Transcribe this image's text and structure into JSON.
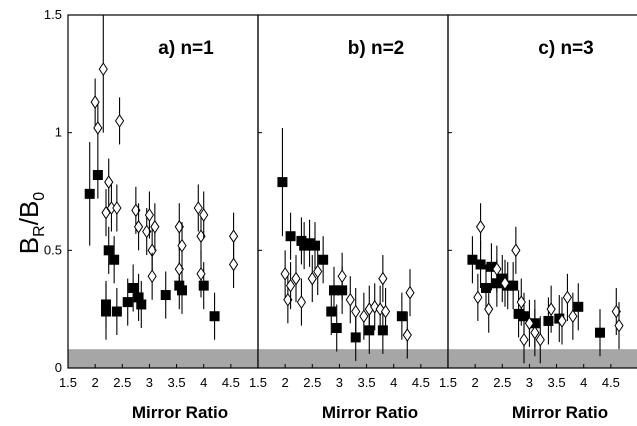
{
  "figure": {
    "ylabel_main": "B",
    "ylabel_sub_num": "R",
    "ylabel_sep": "/B",
    "ylabel_sub_den": "0",
    "ytick_labels": [
      "0",
      "0.5",
      "1",
      "1.5"
    ],
    "colors": {
      "axis": "#000000",
      "shade": "#a6a6a6",
      "filled": "#000000",
      "open": "#ffffff"
    }
  },
  "chart_data": [
    {
      "type": "scatter",
      "title": "a) n=1",
      "xlabel": "Mirror Ratio",
      "xlim": [
        1.5,
        5.0
      ],
      "ylim": [
        0,
        1.5
      ],
      "xticks": [
        "1.5",
        "2",
        "2.5",
        "3",
        "3.5",
        "4",
        "4.5"
      ],
      "shaded_band": [
        0,
        0.08
      ],
      "series": [
        {
          "marker": "filled-square",
          "points": [
            {
              "x": 1.9,
              "y": 0.74,
              "err": 0.22
            },
            {
              "x": 2.05,
              "y": 0.82,
              "err": 0.0
            },
            {
              "x": 2.2,
              "y": 0.27,
              "err": 0.1
            },
            {
              "x": 2.2,
              "y": 0.24,
              "err": 0.12
            },
            {
              "x": 2.25,
              "y": 0.5,
              "err": 0.0
            },
            {
              "x": 2.35,
              "y": 0.46,
              "err": 0.0
            },
            {
              "x": 2.4,
              "y": 0.24,
              "err": 0.0
            },
            {
              "x": 2.6,
              "y": 0.28,
              "err": 0.0
            },
            {
              "x": 2.7,
              "y": 0.34,
              "err": 0.0
            },
            {
              "x": 2.8,
              "y": 0.3,
              "err": 0.0
            },
            {
              "x": 2.85,
              "y": 0.27,
              "err": 0.0
            },
            {
              "x": 3.3,
              "y": 0.31,
              "err": 0.0
            },
            {
              "x": 3.55,
              "y": 0.35,
              "err": 0.0
            },
            {
              "x": 3.6,
              "y": 0.33,
              "err": 0.0
            },
            {
              "x": 4.0,
              "y": 0.35,
              "err": 0.0
            },
            {
              "x": 4.2,
              "y": 0.22,
              "err": 0.0
            }
          ]
        },
        {
          "marker": "open-diamond",
          "points": [
            {
              "x": 2.0,
              "y": 1.13,
              "err": 0.0
            },
            {
              "x": 2.05,
              "y": 1.02,
              "err": 0.0
            },
            {
              "x": 2.15,
              "y": 1.27,
              "err": 0.27
            },
            {
              "x": 2.25,
              "y": 0.79,
              "err": 0.0
            },
            {
              "x": 2.2,
              "y": 0.66,
              "err": 0.0
            },
            {
              "x": 2.3,
              "y": 0.68,
              "err": 0.0
            },
            {
              "x": 2.4,
              "y": 0.68,
              "err": 0.0
            },
            {
              "x": 2.45,
              "y": 1.05,
              "err": 0.0
            },
            {
              "x": 2.75,
              "y": 0.67,
              "err": 0.0
            },
            {
              "x": 2.8,
              "y": 0.6,
              "err": 0.0
            },
            {
              "x": 2.95,
              "y": 0.58,
              "err": 0.0
            },
            {
              "x": 3.0,
              "y": 0.65,
              "err": 0.0
            },
            {
              "x": 3.05,
              "y": 0.5,
              "err": 0.0
            },
            {
              "x": 3.05,
              "y": 0.39,
              "err": 0.0
            },
            {
              "x": 3.1,
              "y": 0.6,
              "err": 0.0
            },
            {
              "x": 3.55,
              "y": 0.6,
              "err": 0.0
            },
            {
              "x": 3.55,
              "y": 0.42,
              "err": 0.0
            },
            {
              "x": 3.6,
              "y": 0.52,
              "err": 0.0
            },
            {
              "x": 3.9,
              "y": 0.68,
              "err": 0.0
            },
            {
              "x": 3.95,
              "y": 0.4,
              "err": 0.0
            },
            {
              "x": 3.95,
              "y": 0.56,
              "err": 0.0
            },
            {
              "x": 4.0,
              "y": 0.65,
              "err": 0.0
            },
            {
              "x": 4.55,
              "y": 0.56,
              "err": 0.0
            },
            {
              "x": 4.55,
              "y": 0.44,
              "err": 0.0
            }
          ]
        }
      ]
    },
    {
      "type": "scatter",
      "title": "b) n=2",
      "xlabel": "Mirror Ratio",
      "xlim": [
        1.5,
        5.0
      ],
      "ylim": [
        0,
        1.5
      ],
      "xticks": [
        "1.5",
        "2",
        "2.5",
        "3",
        "3.5",
        "4",
        "4.5"
      ],
      "shaded_band": [
        0,
        0.08
      ],
      "series": [
        {
          "marker": "filled-square",
          "points": [
            {
              "x": 1.95,
              "y": 0.79,
              "err": 0.23
            },
            {
              "x": 2.1,
              "y": 0.56,
              "err": 0.0
            },
            {
              "x": 2.3,
              "y": 0.54,
              "err": 0.0
            },
            {
              "x": 2.35,
              "y": 0.52,
              "err": 0.0
            },
            {
              "x": 2.45,
              "y": 0.53,
              "err": 0.0
            },
            {
              "x": 2.55,
              "y": 0.52,
              "err": 0.0
            },
            {
              "x": 2.7,
              "y": 0.46,
              "err": 0.0
            },
            {
              "x": 2.85,
              "y": 0.24,
              "err": 0.0
            },
            {
              "x": 2.9,
              "y": 0.33,
              "err": 0.0
            },
            {
              "x": 2.95,
              "y": 0.17,
              "err": 0.0
            },
            {
              "x": 3.05,
              "y": 0.33,
              "err": 0.0
            },
            {
              "x": 3.3,
              "y": 0.13,
              "err": 0.0
            },
            {
              "x": 3.55,
              "y": 0.16,
              "err": 0.0
            },
            {
              "x": 3.8,
              "y": 0.16,
              "err": 0.0
            },
            {
              "x": 4.15,
              "y": 0.22,
              "err": 0.0
            }
          ]
        },
        {
          "marker": "open-diamond",
          "points": [
            {
              "x": 2.0,
              "y": 0.4,
              "err": 0.0
            },
            {
              "x": 2.05,
              "y": 0.29,
              "err": 0.0
            },
            {
              "x": 2.1,
              "y": 0.35,
              "err": 0.0
            },
            {
              "x": 2.2,
              "y": 0.38,
              "err": 0.0
            },
            {
              "x": 2.3,
              "y": 0.28,
              "err": 0.0
            },
            {
              "x": 2.5,
              "y": 0.38,
              "err": 0.0
            },
            {
              "x": 2.6,
              "y": 0.41,
              "err": 0.0
            },
            {
              "x": 3.05,
              "y": 0.39,
              "err": 0.0
            },
            {
              "x": 3.2,
              "y": 0.29,
              "err": 0.0
            },
            {
              "x": 3.3,
              "y": 0.24,
              "err": 0.0
            },
            {
              "x": 3.45,
              "y": 0.22,
              "err": 0.0
            },
            {
              "x": 3.55,
              "y": 0.25,
              "err": 0.0
            },
            {
              "x": 3.65,
              "y": 0.26,
              "err": 0.0
            },
            {
              "x": 3.75,
              "y": 0.25,
              "err": 0.0
            },
            {
              "x": 3.8,
              "y": 0.38,
              "err": 0.0
            },
            {
              "x": 3.85,
              "y": 0.24,
              "err": 0.0
            },
            {
              "x": 4.25,
              "y": 0.14,
              "err": 0.0
            },
            {
              "x": 4.3,
              "y": 0.32,
              "err": 0.0
            }
          ]
        }
      ]
    },
    {
      "type": "scatter",
      "title": "c) n=3",
      "xlabel": "Mirror Ratio",
      "xlim": [
        1.5,
        5.0
      ],
      "ylim": [
        0,
        1.5
      ],
      "xticks": [
        "1.5",
        "2",
        "2.5",
        "3",
        "3.5",
        "4",
        "4.5"
      ],
      "shaded_band": [
        0,
        0.08
      ],
      "series": [
        {
          "marker": "filled-square",
          "points": [
            {
              "x": 1.95,
              "y": 0.46,
              "err": 0.0
            },
            {
              "x": 2.1,
              "y": 0.44,
              "err": 0.0
            },
            {
              "x": 2.2,
              "y": 0.34,
              "err": 0.0
            },
            {
              "x": 2.3,
              "y": 0.43,
              "err": 0.0
            },
            {
              "x": 2.4,
              "y": 0.36,
              "err": 0.0
            },
            {
              "x": 2.5,
              "y": 0.38,
              "err": 0.0
            },
            {
              "x": 2.6,
              "y": 0.35,
              "err": 0.0
            },
            {
              "x": 2.7,
              "y": 0.35,
              "err": 0.0
            },
            {
              "x": 2.8,
              "y": 0.23,
              "err": 0.0
            },
            {
              "x": 2.9,
              "y": 0.22,
              "err": 0.0
            },
            {
              "x": 3.1,
              "y": 0.19,
              "err": 0.0
            },
            {
              "x": 3.35,
              "y": 0.2,
              "err": 0.0
            },
            {
              "x": 3.55,
              "y": 0.21,
              "err": 0.0
            },
            {
              "x": 3.9,
              "y": 0.26,
              "err": 0.0
            },
            {
              "x": 4.3,
              "y": 0.15,
              "err": 0.0
            }
          ]
        },
        {
          "marker": "open-diamond",
          "points": [
            {
              "x": 2.05,
              "y": 0.3,
              "err": 0.0
            },
            {
              "x": 2.1,
              "y": 0.6,
              "err": 0.0
            },
            {
              "x": 2.25,
              "y": 0.25,
              "err": 0.0
            },
            {
              "x": 2.4,
              "y": 0.42,
              "err": 0.0
            },
            {
              "x": 2.55,
              "y": 0.36,
              "err": 0.0
            },
            {
              "x": 2.75,
              "y": 0.5,
              "err": 0.0
            },
            {
              "x": 2.85,
              "y": 0.28,
              "err": 0.0
            },
            {
              "x": 2.9,
              "y": 0.12,
              "err": 0.0
            },
            {
              "x": 3.0,
              "y": 0.19,
              "err": 0.0
            },
            {
              "x": 3.1,
              "y": 0.15,
              "err": 0.0
            },
            {
              "x": 3.2,
              "y": 0.12,
              "err": 0.0
            },
            {
              "x": 3.4,
              "y": 0.25,
              "err": 0.0
            },
            {
              "x": 3.6,
              "y": 0.2,
              "err": 0.0
            },
            {
              "x": 3.7,
              "y": 0.3,
              "err": 0.0
            },
            {
              "x": 3.8,
              "y": 0.22,
              "err": 0.0
            },
            {
              "x": 4.6,
              "y": 0.24,
              "err": 0.0
            },
            {
              "x": 4.65,
              "y": 0.18,
              "err": 0.0
            }
          ]
        }
      ]
    }
  ]
}
